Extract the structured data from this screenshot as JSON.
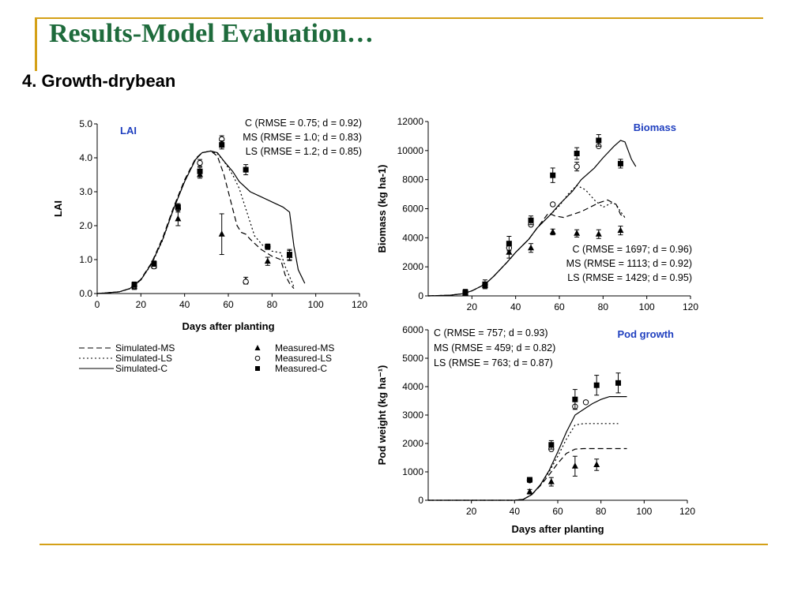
{
  "slide": {
    "title": "Results-Model Evaluation…",
    "subtitle": "4. Growth-drybean"
  },
  "chart_data": [
    {
      "type": "line",
      "id": "lai",
      "label": "LAI",
      "label_color": "#1f3fbf",
      "xlabel": "Days after planting",
      "ylabel": "LAI",
      "xlim": [
        0,
        120
      ],
      "ylim": [
        0,
        5
      ],
      "xticks": [
        0,
        20,
        40,
        60,
        80,
        100,
        120
      ],
      "xtick_labels": [
        "0",
        "20",
        "40",
        "60",
        "80",
        "100",
        "120"
      ],
      "yticks": [
        0,
        1,
        2,
        3,
        4,
        5
      ],
      "ytick_labels": [
        "0.0",
        "1.0",
        "2.0",
        "3.0",
        "4.0",
        "5.0"
      ],
      "stats": [
        "C (RMSE = 0.75; d = 0.92)",
        "MS (RMSE = 1.0; d = 0.83)",
        "LS (RMSE = 1.2; d = 0.85)"
      ],
      "series": [
        {
          "name": "Simulated-C",
          "kind": "line",
          "dash": "solid",
          "x": [
            0,
            10,
            15,
            20,
            25,
            30,
            35,
            40,
            45,
            48,
            52,
            55,
            58,
            62,
            65,
            70,
            75,
            80,
            85,
            88,
            90,
            92,
            95
          ],
          "y": [
            0,
            0.05,
            0.15,
            0.4,
            0.9,
            1.6,
            2.5,
            3.3,
            3.95,
            4.15,
            4.2,
            4.15,
            3.9,
            3.6,
            3.3,
            3.0,
            2.85,
            2.7,
            2.55,
            2.4,
            1.4,
            0.7,
            0.3
          ]
        },
        {
          "name": "Simulated-MS",
          "kind": "line",
          "dash": "dashed",
          "x": [
            0,
            10,
            15,
            20,
            25,
            30,
            35,
            40,
            45,
            48,
            52,
            55,
            58,
            60,
            62,
            64,
            66,
            68,
            70,
            75,
            80,
            84,
            86,
            88,
            90
          ],
          "y": [
            0,
            0.05,
            0.15,
            0.42,
            0.92,
            1.65,
            2.55,
            3.35,
            3.98,
            4.15,
            4.2,
            4.05,
            3.5,
            3.0,
            2.5,
            2.0,
            1.8,
            1.75,
            1.6,
            1.3,
            1.1,
            1.0,
            0.55,
            0.3,
            0.15
          ]
        },
        {
          "name": "Simulated-LS",
          "kind": "line",
          "dash": "dotted",
          "x": [
            0,
            10,
            15,
            20,
            25,
            30,
            35,
            40,
            45,
            48,
            52,
            55,
            58,
            62,
            65,
            68,
            72,
            76,
            80,
            84,
            86,
            88,
            90
          ],
          "y": [
            0,
            0.05,
            0.14,
            0.4,
            0.88,
            1.58,
            2.5,
            3.3,
            3.95,
            4.15,
            4.2,
            4.12,
            3.9,
            3.5,
            3.1,
            2.5,
            1.7,
            1.4,
            1.25,
            1.2,
            0.8,
            0.5,
            0.2
          ]
        },
        {
          "name": "Measured-MS",
          "kind": "marker",
          "marker": "triangle",
          "x": [
            17,
            26,
            37,
            47,
            57,
            68,
            78,
            88
          ],
          "y": [
            0.2,
            0.82,
            2.2,
            3.5,
            1.75,
            0.38,
            0.95,
            1.12
          ],
          "err": [
            0.08,
            0.08,
            0.2,
            0.1,
            0.6,
            0.1,
            0.12,
            0.15
          ]
        },
        {
          "name": "Measured-LS",
          "kind": "marker",
          "marker": "circle",
          "x": [
            17,
            26,
            37,
            47,
            57,
            68,
            78
          ],
          "y": [
            0.22,
            0.8,
            2.5,
            3.85,
            4.55,
            0.35,
            1.38
          ],
          "err": [
            0,
            0,
            0,
            0.1,
            0.1,
            0,
            0
          ]
        },
        {
          "name": "Measured-C",
          "kind": "marker",
          "marker": "square",
          "x": [
            17,
            26,
            37,
            47,
            57,
            68,
            78,
            88
          ],
          "y": [
            0.26,
            0.88,
            2.55,
            3.6,
            4.38,
            3.65,
            1.38,
            1.15
          ],
          "err": [
            0.08,
            0.08,
            0.1,
            0.12,
            0.12,
            0.15,
            0.08,
            0.15
          ]
        }
      ]
    },
    {
      "type": "line",
      "id": "biomass",
      "label": "Biomass",
      "label_color": "#1f3fbf",
      "xlabel": "",
      "ylabel": "Biomass (kg ha-1)",
      "xlim": [
        0,
        120
      ],
      "ylim": [
        0,
        12000
      ],
      "xticks": [
        20,
        40,
        60,
        80,
        100,
        120
      ],
      "xtick_labels": [
        "20",
        "40",
        "60",
        "80",
        "100",
        "120"
      ],
      "yticks": [
        0,
        2000,
        4000,
        6000,
        8000,
        10000,
        12000
      ],
      "ytick_labels": [
        "0",
        "2000",
        "4000",
        "6000",
        "8000",
        "10000",
        "12000"
      ],
      "stats": [
        "C   (RMSE = 1697; d = 0.96)",
        "MS (RMSE = 1113; d = 0.92)",
        "LS (RMSE = 1429; d = 0.95)"
      ],
      "series": [
        {
          "name": "Simulated-C",
          "kind": "line",
          "dash": "solid",
          "x": [
            0,
            10,
            16,
            20,
            26,
            30,
            36,
            40,
            46,
            50,
            56,
            60,
            66,
            70,
            76,
            80,
            85,
            88,
            90,
            93,
            95
          ],
          "y": [
            0,
            50,
            150,
            350,
            800,
            1350,
            2300,
            3000,
            3900,
            4700,
            5600,
            6300,
            7200,
            8000,
            8800,
            9500,
            10300,
            10700,
            10600,
            9400,
            8900
          ]
        },
        {
          "name": "Simulated-MS",
          "kind": "line",
          "dash": "dashed",
          "x": [
            0,
            10,
            16,
            20,
            26,
            30,
            36,
            40,
            46,
            50,
            55,
            58,
            62,
            66,
            70,
            74,
            78,
            82,
            86,
            88,
            90
          ],
          "y": [
            0,
            50,
            150,
            350,
            800,
            1350,
            2300,
            3000,
            3900,
            4700,
            5700,
            5500,
            5400,
            5600,
            5800,
            6100,
            6400,
            6600,
            6300,
            5600,
            5400
          ]
        },
        {
          "name": "Simulated-LS",
          "kind": "line",
          "dash": "dotted",
          "x": [
            0,
            10,
            16,
            20,
            26,
            30,
            36,
            40,
            46,
            50,
            56,
            60,
            64,
            68,
            72,
            76,
            80,
            84,
            86,
            88,
            90
          ],
          "y": [
            0,
            50,
            150,
            350,
            800,
            1350,
            2300,
            3000,
            3900,
            4700,
            5600,
            6200,
            7000,
            7600,
            7300,
            6600,
            6100,
            6400,
            6300,
            5800,
            5400
          ]
        },
        {
          "name": "Measured-MS",
          "kind": "marker",
          "marker": "triangle",
          "x": [
            17,
            26,
            37,
            47,
            57,
            68,
            78,
            88
          ],
          "y": [
            200,
            700,
            3000,
            3300,
            4400,
            4300,
            4250,
            4500
          ],
          "err": [
            100,
            200,
            400,
            300,
            200,
            250,
            300,
            300
          ]
        },
        {
          "name": "Measured-LS",
          "kind": "marker",
          "marker": "circle",
          "x": [
            17,
            26,
            37,
            47,
            57,
            68,
            78
          ],
          "y": [
            250,
            780,
            3300,
            4900,
            6300,
            8900,
            10300
          ],
          "err": [
            0,
            0,
            0,
            0,
            0,
            300,
            0
          ]
        },
        {
          "name": "Measured-C",
          "kind": "marker",
          "marker": "square",
          "x": [
            17,
            26,
            37,
            47,
            57,
            68,
            78,
            88
          ],
          "y": [
            250,
            800,
            3600,
            5200,
            8300,
            9800,
            10700,
            9100
          ],
          "err": [
            200,
            300,
            500,
            300,
            500,
            400,
            400,
            300
          ]
        }
      ]
    },
    {
      "type": "line",
      "id": "pod",
      "label": "Pod growth",
      "label_color": "#1f3fbf",
      "xlabel": "Days after planting",
      "ylabel": "Pod weight (kg ha⁻¹)",
      "xlim": [
        0,
        120
      ],
      "ylim": [
        0,
        6000
      ],
      "xticks": [
        20,
        40,
        60,
        80,
        100,
        120
      ],
      "xtick_labels": [
        "20",
        "40",
        "60",
        "80",
        "100",
        "120"
      ],
      "yticks": [
        0,
        1000,
        2000,
        3000,
        4000,
        5000,
        6000
      ],
      "ytick_labels": [
        "0",
        "1000",
        "2000",
        "3000",
        "4000",
        "5000",
        "6000"
      ],
      "stats": [
        "C  (RMSE = 757; d = 0.93)",
        "MS (RMSE = 459; d = 0.82)",
        "LS (RMSE = 763; d = 0.87)"
      ],
      "series": [
        {
          "name": "Simulated-C",
          "kind": "line",
          "dash": "solid",
          "x": [
            0,
            20,
            40,
            44,
            48,
            52,
            56,
            60,
            64,
            68,
            72,
            76,
            80,
            84,
            88,
            92
          ],
          "y": [
            0,
            0,
            0,
            30,
            200,
            550,
            1050,
            1700,
            2400,
            3000,
            3200,
            3400,
            3550,
            3650,
            3650,
            3650
          ]
        },
        {
          "name": "Simulated-MS",
          "kind": "line",
          "dash": "dashed",
          "x": [
            0,
            20,
            40,
            44,
            48,
            52,
            56,
            60,
            64,
            68,
            72,
            80,
            88,
            92
          ],
          "y": [
            0,
            0,
            0,
            30,
            200,
            520,
            900,
            1300,
            1650,
            1800,
            1820,
            1820,
            1820,
            1820
          ]
        },
        {
          "name": "Simulated-LS",
          "kind": "line",
          "dash": "dotted",
          "x": [
            0,
            20,
            40,
            44,
            48,
            52,
            56,
            60,
            64,
            68,
            72,
            80,
            88
          ],
          "y": [
            0,
            0,
            0,
            30,
            200,
            540,
            1000,
            1550,
            2150,
            2650,
            2700,
            2700,
            2700
          ]
        },
        {
          "name": "Measured-MS",
          "kind": "marker",
          "marker": "triangle",
          "x": [
            47,
            57,
            68,
            78
          ],
          "y": [
            300,
            650,
            1200,
            1250
          ],
          "err": [
            80,
            150,
            350,
            200
          ]
        },
        {
          "name": "Measured-LS",
          "kind": "marker",
          "marker": "circle",
          "x": [
            47,
            57,
            68,
            73
          ],
          "y": [
            700,
            1800,
            3300,
            3450
          ],
          "err": [
            0,
            0,
            0,
            0
          ]
        },
        {
          "name": "Measured-C",
          "kind": "marker",
          "marker": "square",
          "x": [
            47,
            57,
            68,
            78,
            88
          ],
          "y": [
            720,
            1950,
            3550,
            4050,
            4130
          ],
          "err": [
            80,
            150,
            350,
            350,
            350
          ]
        }
      ]
    }
  ],
  "legend": [
    {
      "name": "Simulated-MS",
      "kind": "line",
      "dash": "dashed"
    },
    {
      "name": "Simulated-LS",
      "kind": "line",
      "dash": "dotted"
    },
    {
      "name": "Simulated-C",
      "kind": "line",
      "dash": "solid"
    },
    {
      "name": "Measured-MS",
      "kind": "marker",
      "marker": "triangle"
    },
    {
      "name": "Measured-LS",
      "kind": "marker",
      "marker": "circle"
    },
    {
      "name": "Measured-C",
      "kind": "marker",
      "marker": "square"
    }
  ]
}
